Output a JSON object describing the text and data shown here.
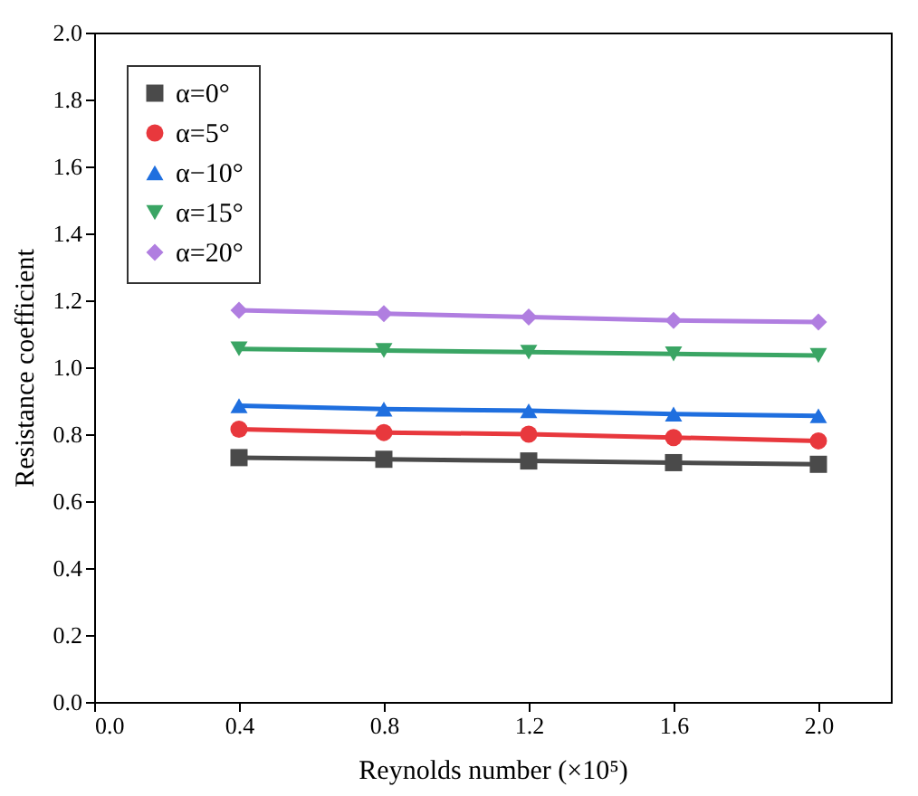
{
  "chart_data": {
    "type": "line",
    "xlabel": "Reynolds number (×10⁵)",
    "ylabel": "Resistance coefficient",
    "x": [
      0.4,
      0.8,
      1.2,
      1.6,
      2.0
    ],
    "xlim": [
      0,
      2.2
    ],
    "xticks": [
      {
        "value": 0,
        "label": "0.0"
      },
      0.4,
      0.8,
      1.2,
      1.6,
      {
        "value": 2,
        "label": "2.0"
      }
    ],
    "ylim": [
      0,
      2
    ],
    "yticks": [
      {
        "value": 0,
        "label": "0.0"
      },
      0.2,
      0.4,
      0.6,
      0.8,
      {
        "value": 1,
        "label": "1.0"
      },
      1.2,
      1.4,
      1.6,
      1.8,
      {
        "value": 2,
        "label": "2.0"
      }
    ],
    "grid": false,
    "legend": "top left",
    "line_style": "solid",
    "series": [
      {
        "name": "α=0°",
        "color": "#4a4a4a",
        "marker": "square",
        "values": [
          0.73,
          0.725,
          0.72,
          0.715,
          0.71
        ]
      },
      {
        "name": "α=5°",
        "color": "#e8383d",
        "marker": "circle",
        "values": [
          0.815,
          0.805,
          0.8,
          0.79,
          0.78
        ]
      },
      {
        "name": "α−10°",
        "color": "#1f6fdf",
        "marker": "triangle",
        "values": [
          0.885,
          0.875,
          0.87,
          0.86,
          0.855
        ]
      },
      {
        "name": "α=15°",
        "color": "#3aa564",
        "marker": "triangle-down",
        "values": [
          1.055,
          1.05,
          1.045,
          1.04,
          1.035
        ]
      },
      {
        "name": "α=20°",
        "color": "#b07ee0",
        "marker": "diamond",
        "values": [
          1.17,
          1.16,
          1.15,
          1.14,
          1.135
        ]
      }
    ]
  }
}
